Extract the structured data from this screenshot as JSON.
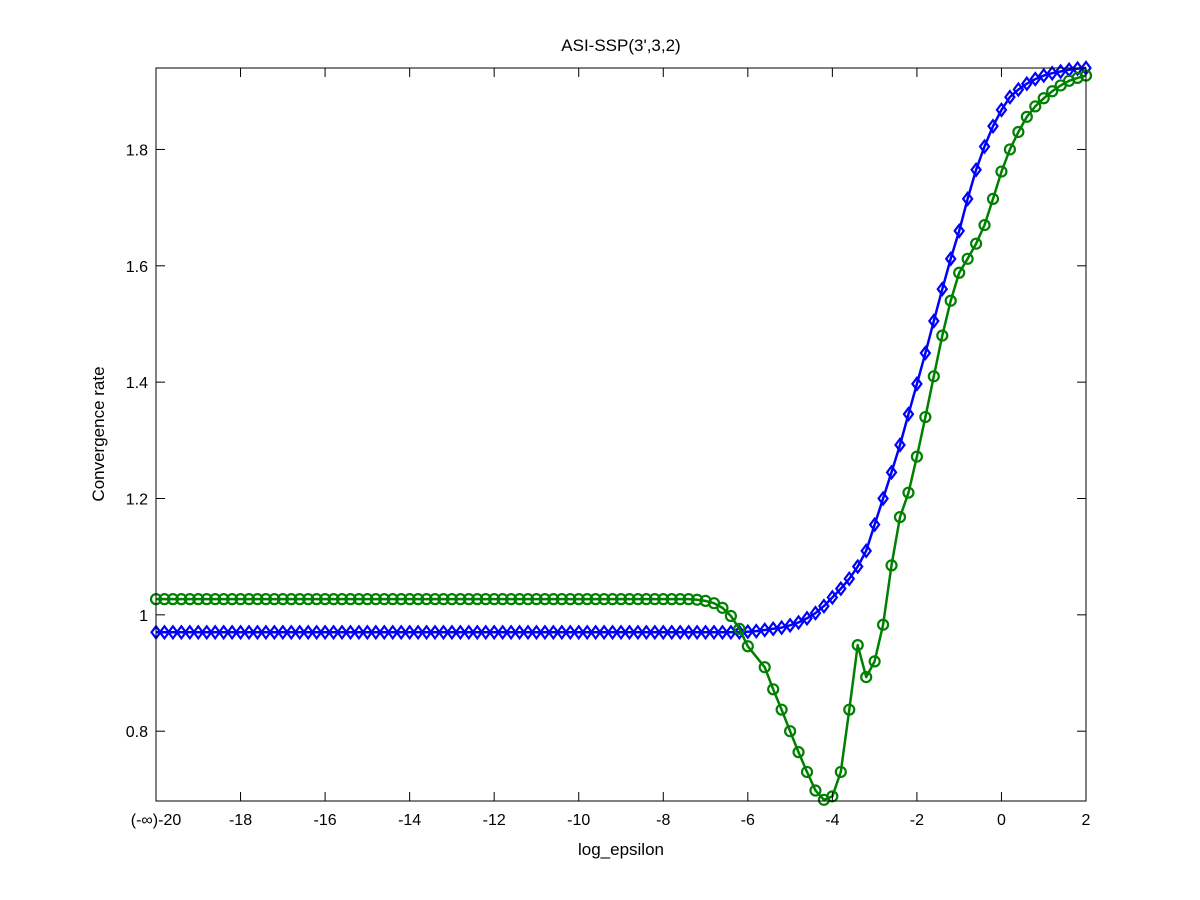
{
  "chart_data": {
    "type": "line",
    "title": "ASI-SSP(3',3,2)",
    "xlabel": "log_epsilon",
    "ylabel": "Convergence rate",
    "xlim": [
      -20,
      2
    ],
    "ylim": [
      0.68,
      1.94
    ],
    "xticks": [
      {
        "value": -20,
        "label": "(-∞)-20"
      },
      {
        "value": -18,
        "label": "-18"
      },
      {
        "value": -16,
        "label": "-16"
      },
      {
        "value": -14,
        "label": "-14"
      },
      {
        "value": -12,
        "label": "-12"
      },
      {
        "value": -10,
        "label": "-10"
      },
      {
        "value": -8,
        "label": "-8"
      },
      {
        "value": -6,
        "label": "-6"
      },
      {
        "value": -4,
        "label": "-4"
      },
      {
        "value": -2,
        "label": "-2"
      },
      {
        "value": 0,
        "label": "0"
      },
      {
        "value": 2,
        "label": "2"
      }
    ],
    "yticks": [
      {
        "value": 0.8,
        "label": "0.8"
      },
      {
        "value": 1.0,
        "label": "1"
      },
      {
        "value": 1.2,
        "label": "1.2"
      },
      {
        "value": 1.4,
        "label": "1.4"
      },
      {
        "value": 1.6,
        "label": "1.6"
      },
      {
        "value": 1.8,
        "label": "1.8"
      }
    ],
    "grid": false,
    "series": [
      {
        "color": "#0000ff",
        "marker": "diamond",
        "points": [
          [
            -20,
            0.97
          ],
          [
            -19.8,
            0.97
          ],
          [
            -19.6,
            0.97
          ],
          [
            -19.4,
            0.97
          ],
          [
            -19.2,
            0.97
          ],
          [
            -19,
            0.97
          ],
          [
            -18.8,
            0.97
          ],
          [
            -18.6,
            0.97
          ],
          [
            -18.4,
            0.97
          ],
          [
            -18.2,
            0.97
          ],
          [
            -18,
            0.97
          ],
          [
            -17.8,
            0.97
          ],
          [
            -17.6,
            0.97
          ],
          [
            -17.4,
            0.97
          ],
          [
            -17.2,
            0.97
          ],
          [
            -17,
            0.97
          ],
          [
            -16.8,
            0.97
          ],
          [
            -16.6,
            0.97
          ],
          [
            -16.4,
            0.97
          ],
          [
            -16.2,
            0.97
          ],
          [
            -16,
            0.97
          ],
          [
            -15.8,
            0.97
          ],
          [
            -15.6,
            0.97
          ],
          [
            -15.4,
            0.97
          ],
          [
            -15.2,
            0.97
          ],
          [
            -15,
            0.97
          ],
          [
            -14.8,
            0.97
          ],
          [
            -14.6,
            0.97
          ],
          [
            -14.4,
            0.97
          ],
          [
            -14.2,
            0.97
          ],
          [
            -14,
            0.97
          ],
          [
            -13.8,
            0.97
          ],
          [
            -13.6,
            0.97
          ],
          [
            -13.4,
            0.97
          ],
          [
            -13.2,
            0.97
          ],
          [
            -13,
            0.97
          ],
          [
            -12.8,
            0.97
          ],
          [
            -12.6,
            0.97
          ],
          [
            -12.4,
            0.97
          ],
          [
            -12.2,
            0.97
          ],
          [
            -12,
            0.97
          ],
          [
            -11.8,
            0.97
          ],
          [
            -11.6,
            0.97
          ],
          [
            -11.4,
            0.97
          ],
          [
            -11.2,
            0.97
          ],
          [
            -11,
            0.97
          ],
          [
            -10.8,
            0.97
          ],
          [
            -10.6,
            0.97
          ],
          [
            -10.4,
            0.97
          ],
          [
            -10.2,
            0.97
          ],
          [
            -10,
            0.97
          ],
          [
            -9.8,
            0.97
          ],
          [
            -9.6,
            0.97
          ],
          [
            -9.4,
            0.97
          ],
          [
            -9.2,
            0.97
          ],
          [
            -9,
            0.97
          ],
          [
            -8.8,
            0.97
          ],
          [
            -8.6,
            0.97
          ],
          [
            -8.4,
            0.97
          ],
          [
            -8.2,
            0.97
          ],
          [
            -8,
            0.97
          ],
          [
            -7.8,
            0.97
          ],
          [
            -7.6,
            0.97
          ],
          [
            -7.4,
            0.97
          ],
          [
            -7.2,
            0.97
          ],
          [
            -7,
            0.97
          ],
          [
            -6.8,
            0.97
          ],
          [
            -6.6,
            0.97
          ],
          [
            -6.4,
            0.97
          ],
          [
            -6.2,
            0.97
          ],
          [
            -6,
            0.971
          ],
          [
            -5.8,
            0.972
          ],
          [
            -5.6,
            0.974
          ],
          [
            -5.4,
            0.976
          ],
          [
            -5.2,
            0.978
          ],
          [
            -5,
            0.982
          ],
          [
            -4.8,
            0.987
          ],
          [
            -4.6,
            0.994
          ],
          [
            -4.4,
            1.003
          ],
          [
            -4.2,
            1.015
          ],
          [
            -4,
            1.03
          ],
          [
            -3.8,
            1.045
          ],
          [
            -3.6,
            1.062
          ],
          [
            -3.4,
            1.083
          ],
          [
            -3.2,
            1.11
          ],
          [
            -3,
            1.155
          ],
          [
            -2.8,
            1.2
          ],
          [
            -2.6,
            1.245
          ],
          [
            -2.4,
            1.292
          ],
          [
            -2.2,
            1.345
          ],
          [
            -2,
            1.397
          ],
          [
            -1.8,
            1.45
          ],
          [
            -1.6,
            1.505
          ],
          [
            -1.4,
            1.56
          ],
          [
            -1.2,
            1.612
          ],
          [
            -1,
            1.66
          ],
          [
            -0.8,
            1.715
          ],
          [
            -0.6,
            1.765
          ],
          [
            -0.4,
            1.805
          ],
          [
            -0.2,
            1.84
          ],
          [
            0,
            1.868
          ],
          [
            0.2,
            1.89
          ],
          [
            0.4,
            1.903
          ],
          [
            0.6,
            1.913
          ],
          [
            0.8,
            1.921
          ],
          [
            1,
            1.927
          ],
          [
            1.2,
            1.931
          ],
          [
            1.4,
            1.934
          ],
          [
            1.6,
            1.937
          ],
          [
            1.8,
            1.939
          ],
          [
            2,
            1.94
          ]
        ]
      },
      {
        "color": "#008000",
        "marker": "circle",
        "points": [
          [
            -20,
            1.027
          ],
          [
            -19.8,
            1.027
          ],
          [
            -19.6,
            1.027
          ],
          [
            -19.4,
            1.027
          ],
          [
            -19.2,
            1.027
          ],
          [
            -19,
            1.027
          ],
          [
            -18.8,
            1.027
          ],
          [
            -18.6,
            1.027
          ],
          [
            -18.4,
            1.027
          ],
          [
            -18.2,
            1.027
          ],
          [
            -18,
            1.027
          ],
          [
            -17.8,
            1.027
          ],
          [
            -17.6,
            1.027
          ],
          [
            -17.4,
            1.027
          ],
          [
            -17.2,
            1.027
          ],
          [
            -17,
            1.027
          ],
          [
            -16.8,
            1.027
          ],
          [
            -16.6,
            1.027
          ],
          [
            -16.4,
            1.027
          ],
          [
            -16.2,
            1.027
          ],
          [
            -16,
            1.027
          ],
          [
            -15.8,
            1.027
          ],
          [
            -15.6,
            1.027
          ],
          [
            -15.4,
            1.027
          ],
          [
            -15.2,
            1.027
          ],
          [
            -15,
            1.027
          ],
          [
            -14.8,
            1.027
          ],
          [
            -14.6,
            1.027
          ],
          [
            -14.4,
            1.027
          ],
          [
            -14.2,
            1.027
          ],
          [
            -14,
            1.027
          ],
          [
            -13.8,
            1.027
          ],
          [
            -13.6,
            1.027
          ],
          [
            -13.4,
            1.027
          ],
          [
            -13.2,
            1.027
          ],
          [
            -13,
            1.027
          ],
          [
            -12.8,
            1.027
          ],
          [
            -12.6,
            1.027
          ],
          [
            -12.4,
            1.027
          ],
          [
            -12.2,
            1.027
          ],
          [
            -12,
            1.027
          ],
          [
            -11.8,
            1.027
          ],
          [
            -11.6,
            1.027
          ],
          [
            -11.4,
            1.027
          ],
          [
            -11.2,
            1.027
          ],
          [
            -11,
            1.027
          ],
          [
            -10.8,
            1.027
          ],
          [
            -10.6,
            1.027
          ],
          [
            -10.4,
            1.027
          ],
          [
            -10.2,
            1.027
          ],
          [
            -10,
            1.027
          ],
          [
            -9.8,
            1.027
          ],
          [
            -9.6,
            1.027
          ],
          [
            -9.4,
            1.027
          ],
          [
            -9.2,
            1.027
          ],
          [
            -9,
            1.027
          ],
          [
            -8.8,
            1.027
          ],
          [
            -8.6,
            1.027
          ],
          [
            -8.4,
            1.027
          ],
          [
            -8.2,
            1.027
          ],
          [
            -8,
            1.027
          ],
          [
            -7.8,
            1.027
          ],
          [
            -7.6,
            1.027
          ],
          [
            -7.4,
            1.027
          ],
          [
            -7.2,
            1.026
          ],
          [
            -7,
            1.024
          ],
          [
            -6.8,
            1.02
          ],
          [
            -6.6,
            1.012
          ],
          [
            -6.4,
            0.998
          ],
          [
            -6.2,
            0.976
          ],
          [
            -6,
            0.946
          ],
          [
            -5.6,
            0.91
          ],
          [
            -5.4,
            0.872
          ],
          [
            -5.2,
            0.837
          ],
          [
            -5,
            0.8
          ],
          [
            -4.8,
            0.764
          ],
          [
            -4.6,
            0.73
          ],
          [
            -4.4,
            0.698
          ],
          [
            -4.2,
            0.682
          ],
          [
            -4,
            0.688
          ],
          [
            -3.8,
            0.73
          ],
          [
            -3.6,
            0.837
          ],
          [
            -3.4,
            0.948
          ],
          [
            -3.2,
            0.893
          ],
          [
            -3,
            0.92
          ],
          [
            -2.8,
            0.983
          ],
          [
            -2.6,
            1.085
          ],
          [
            -2.4,
            1.168
          ],
          [
            -2.2,
            1.21
          ],
          [
            -2,
            1.272
          ],
          [
            -1.8,
            1.34
          ],
          [
            -1.6,
            1.41
          ],
          [
            -1.4,
            1.48
          ],
          [
            -1.2,
            1.54
          ],
          [
            -1,
            1.588
          ],
          [
            -0.8,
            1.612
          ],
          [
            -0.6,
            1.638
          ],
          [
            -0.4,
            1.67
          ],
          [
            -0.2,
            1.715
          ],
          [
            0,
            1.762
          ],
          [
            0.2,
            1.8
          ],
          [
            0.4,
            1.83
          ],
          [
            0.6,
            1.856
          ],
          [
            0.8,
            1.874
          ],
          [
            1,
            1.888
          ],
          [
            1.2,
            1.9
          ],
          [
            1.4,
            1.91
          ],
          [
            1.6,
            1.918
          ],
          [
            1.8,
            1.923
          ],
          [
            2,
            1.927
          ]
        ]
      }
    ]
  }
}
